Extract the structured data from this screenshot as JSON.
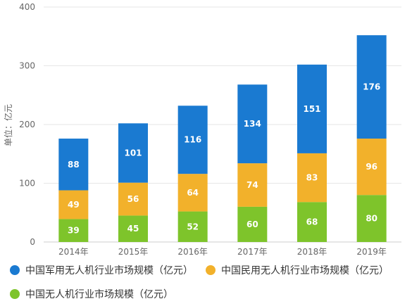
{
  "chart_data": {
    "type": "bar",
    "stacked": true,
    "ylabel": "单位：亿元",
    "ylim": [
      0,
      400
    ],
    "yticks": [
      0,
      100,
      200,
      300,
      400
    ],
    "categories": [
      "2014年",
      "2015年",
      "2016年",
      "2017年",
      "2018年",
      "2019年"
    ],
    "series": [
      {
        "name": "中国无人机行业市场规模（亿元）",
        "color": "#7ec42b",
        "values": [
          39,
          45,
          52,
          60,
          68,
          80
        ]
      },
      {
        "name": "中国民用无人机行业市场规模（亿元）",
        "color": "#f2b12b",
        "values": [
          49,
          56,
          64,
          74,
          83,
          96
        ]
      },
      {
        "name": "中国军用无人机行业市场规模（亿元）",
        "color": "#1a7ad1",
        "values": [
          88,
          101,
          116,
          134,
          151,
          176
        ]
      }
    ],
    "legend_position": "bottom",
    "grid": true
  }
}
